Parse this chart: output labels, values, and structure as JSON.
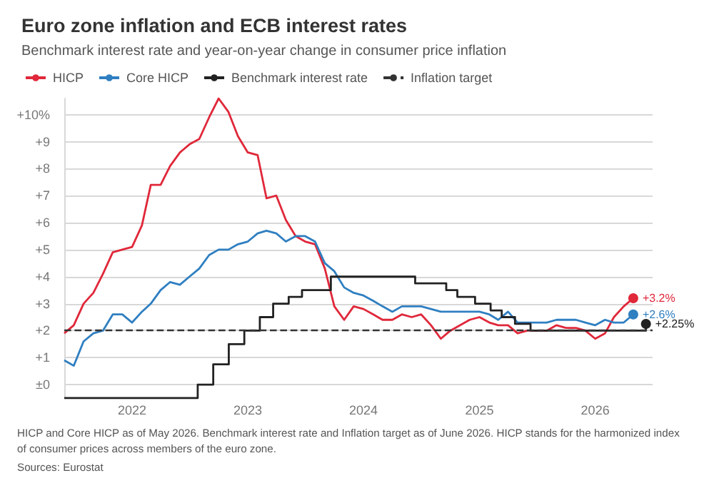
{
  "chart_data": {
    "type": "line",
    "title": "Euro zone inflation and ECB interest rates",
    "subtitle": "Benchmark interest rate and year-on-year change in consumer price inflation",
    "x": [
      "2021-06",
      "2021-07",
      "2021-08",
      "2021-09",
      "2021-10",
      "2021-11",
      "2021-12",
      "2022-01",
      "2022-02",
      "2022-03",
      "2022-04",
      "2022-05",
      "2022-06",
      "2022-07",
      "2022-08",
      "2022-09",
      "2022-10",
      "2022-11",
      "2022-12",
      "2023-01",
      "2023-02",
      "2023-03",
      "2023-04",
      "2023-05",
      "2023-06",
      "2023-07",
      "2023-08",
      "2023-09",
      "2023-10",
      "2023-11",
      "2023-12",
      "2024-01",
      "2024-02",
      "2024-03",
      "2024-04",
      "2024-05",
      "2024-06",
      "2024-07",
      "2024-08",
      "2024-09",
      "2024-10",
      "2024-11",
      "2024-12",
      "2025-01",
      "2025-02",
      "2025-03",
      "2025-04",
      "2025-05",
      "2025-06",
      "2025-07",
      "2025-08",
      "2025-09",
      "2025-10",
      "2025-11",
      "2025-12",
      "2026-01",
      "2026-02",
      "2026-03",
      "2026-04",
      "2026-05"
    ],
    "series": [
      {
        "name": "HICP",
        "color": "#e0283a",
        "values": [
          1.9,
          2.2,
          3.0,
          3.4,
          4.1,
          4.9,
          5.0,
          5.1,
          5.9,
          7.4,
          7.4,
          8.1,
          8.6,
          8.9,
          9.1,
          9.9,
          10.6,
          10.1,
          9.2,
          8.6,
          8.5,
          6.9,
          7.0,
          6.1,
          5.5,
          5.3,
          5.2,
          4.3,
          2.9,
          2.4,
          2.9,
          2.8,
          2.6,
          2.4,
          2.4,
          2.6,
          2.5,
          2.6,
          2.2,
          1.7,
          2.0,
          2.2,
          2.4,
          2.5,
          2.3,
          2.2,
          2.2,
          1.9,
          2.0,
          2.0,
          2.0,
          2.2,
          2.1,
          2.1,
          2.0,
          1.7,
          1.9,
          2.5,
          2.9,
          3.2
        ],
        "value_labels": [
          null,
          null,
          null,
          null,
          null,
          null,
          null,
          null,
          null,
          null,
          null,
          null,
          null,
          null,
          null,
          null,
          null,
          null,
          null,
          null,
          null,
          null,
          null,
          null,
          null,
          null,
          null,
          null,
          null,
          null,
          null,
          null,
          null,
          null,
          null,
          null,
          null,
          null,
          null,
          null,
          null,
          null,
          null,
          null,
          null,
          null,
          null,
          null,
          null,
          null,
          null,
          null,
          null,
          null,
          null,
          null,
          null,
          null,
          null,
          "+3.2%"
        ]
      },
      {
        "name": "Core HICP",
        "color": "#2f7fc1",
        "values": [
          0.9,
          0.7,
          1.6,
          1.9,
          2.0,
          2.6,
          2.6,
          2.3,
          2.7,
          3.0,
          3.5,
          3.8,
          3.7,
          4.0,
          4.3,
          4.8,
          5.0,
          5.0,
          5.2,
          5.3,
          5.6,
          5.7,
          5.6,
          5.3,
          5.5,
          5.5,
          5.3,
          4.5,
          4.2,
          3.6,
          3.4,
          3.3,
          3.1,
          2.9,
          2.7,
          2.9,
          2.9,
          2.9,
          2.8,
          2.7,
          2.7,
          2.7,
          2.7,
          2.7,
          2.6,
          2.4,
          2.7,
          2.3,
          2.3,
          2.3,
          2.3,
          2.4,
          2.4,
          2.4,
          2.3,
          2.2,
          2.4,
          2.3,
          2.3,
          2.6
        ],
        "value_labels": [
          null,
          null,
          null,
          null,
          null,
          null,
          null,
          null,
          null,
          null,
          null,
          null,
          null,
          null,
          null,
          null,
          null,
          null,
          null,
          null,
          null,
          null,
          null,
          null,
          null,
          null,
          null,
          null,
          null,
          null,
          null,
          null,
          null,
          null,
          null,
          null,
          null,
          null,
          null,
          null,
          null,
          null,
          null,
          null,
          null,
          null,
          null,
          null,
          null,
          null,
          null,
          null,
          null,
          null,
          null,
          null,
          null,
          null,
          null,
          "+2.6%"
        ]
      },
      {
        "name": "Benchmark interest rate",
        "type": "step",
        "color": "#222222",
        "x": [
          "2021-06",
          "2022-07-27",
          "2022-09-14",
          "2022-11-02",
          "2022-12-21",
          "2023-02-08",
          "2023-03-22",
          "2023-05-10",
          "2023-06-21",
          "2023-09-20",
          "2024-06-12",
          "2024-09-18",
          "2024-10-23",
          "2024-12-18",
          "2025-02-05",
          "2025-03-12",
          "2025-04-23",
          "2025-06-11",
          "2026-06-10"
        ],
        "values": [
          -0.5,
          0,
          0.75,
          1.5,
          2.0,
          2.5,
          3.0,
          3.25,
          3.5,
          4.0,
          3.75,
          3.5,
          3.25,
          3.0,
          2.75,
          2.5,
          2.25,
          2.0,
          2.25
        ],
        "value_labels": [
          null,
          null,
          null,
          null,
          null,
          null,
          null,
          null,
          null,
          null,
          null,
          null,
          null,
          null,
          null,
          null,
          null,
          null,
          "+2.25%"
        ]
      }
    ],
    "ref_lines": [
      {
        "axis": "y",
        "value": 2,
        "label": "Inflation target",
        "color": "#333333",
        "line_style": "dashed"
      }
    ],
    "xlim": [
      "2021-06",
      "2026-07"
    ],
    "xticks": [
      "2022",
      "2023",
      "2024",
      "2025",
      "2026"
    ],
    "ylim": [
      -0.5,
      10.6
    ],
    "yticks": [
      {
        "value": 0,
        "label": "±0"
      },
      {
        "value": 1,
        "label": "+1"
      },
      {
        "value": 2,
        "label": "+2"
      },
      {
        "value": 3,
        "label": "+3"
      },
      {
        "value": 4,
        "label": "+4"
      },
      {
        "value": 5,
        "label": "+5"
      },
      {
        "value": 6,
        "label": "+6"
      },
      {
        "value": 7,
        "label": "+7"
      },
      {
        "value": 8,
        "label": "+8"
      },
      {
        "value": 9,
        "label": "+9"
      },
      {
        "value": 10,
        "label": "+10%"
      }
    ],
    "grid": "y",
    "legend": "top left",
    "annotations": [
      "HICP and Core HICP as of May 2026. Benchmark interest rate and Inflation target as of June 2026. HICP stands for the harmonized index of consumer prices across members of the euro zone.",
      "Sources: Eurostat"
    ]
  }
}
